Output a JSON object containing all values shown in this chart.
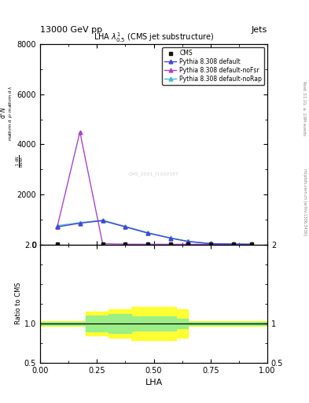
{
  "title": "LHA $\\lambda^{1}_{0.5}$ (CMS jet substructure)",
  "header_left": "13000 GeV pp",
  "header_right": "Jets",
  "right_label_top": "Rivet 3.1.10, $\\geq$ 2.9M events",
  "right_label_bot": "mcplots.cern.ch [arXiv:1306.3436]",
  "watermark": "CMS_2021_I1920187",
  "xlabel": "LHA",
  "ylabel_ratio": "Ratio to CMS",
  "xlim": [
    0,
    1
  ],
  "ylim_main": [
    0,
    8000
  ],
  "ylim_ratio": [
    0.5,
    2.0
  ],
  "x_default": [
    0.075,
    0.175,
    0.275,
    0.375,
    0.475,
    0.575,
    0.65,
    0.75,
    0.85,
    0.93
  ],
  "y_default": [
    700,
    850,
    950,
    700,
    450,
    250,
    120,
    30,
    15,
    5
  ],
  "x_nofsr": [
    0.075,
    0.175,
    0.275,
    0.375,
    0.475,
    0.575,
    0.65,
    0.75,
    0.85,
    0.93
  ],
  "y_nofsr": [
    700,
    4500,
    30,
    10,
    8,
    5,
    5,
    5,
    5,
    5
  ],
  "x_norap": [
    0.075,
    0.175,
    0.275,
    0.375,
    0.475,
    0.575,
    0.65,
    0.75,
    0.85,
    0.93
  ],
  "y_norap": [
    750,
    870,
    970,
    720,
    470,
    260,
    130,
    35,
    15,
    5
  ],
  "x_cms": [
    0.075,
    0.275,
    0.375,
    0.475,
    0.575,
    0.65,
    0.75,
    0.85,
    0.93
  ],
  "y_cms": [
    5,
    5,
    5,
    5,
    5,
    5,
    5,
    5,
    5
  ],
  "color_default": "#4444dd",
  "color_nofsr": "#aa44cc",
  "color_norap": "#44bbcc",
  "color_cms": "#111111",
  "ratio_x_yellow": [
    0.0,
    0.1,
    0.2,
    0.3,
    0.4,
    0.5,
    0.6,
    0.65,
    1.0
  ],
  "ratio_lo_yellow": [
    0.97,
    0.97,
    0.85,
    0.82,
    0.79,
    0.79,
    0.82,
    0.97,
    0.97
  ],
  "ratio_hi_yellow": [
    1.03,
    1.03,
    1.15,
    1.18,
    1.21,
    1.21,
    1.18,
    1.03,
    1.03
  ],
  "ratio_x_green": [
    0.0,
    0.1,
    0.2,
    0.3,
    0.4,
    0.5,
    0.6,
    0.65,
    1.0
  ],
  "ratio_lo_green": [
    0.98,
    0.98,
    0.9,
    0.88,
    0.91,
    0.91,
    0.94,
    0.98,
    0.98
  ],
  "ratio_hi_green": [
    1.02,
    1.02,
    1.1,
    1.12,
    1.09,
    1.09,
    1.06,
    1.02,
    1.02
  ]
}
